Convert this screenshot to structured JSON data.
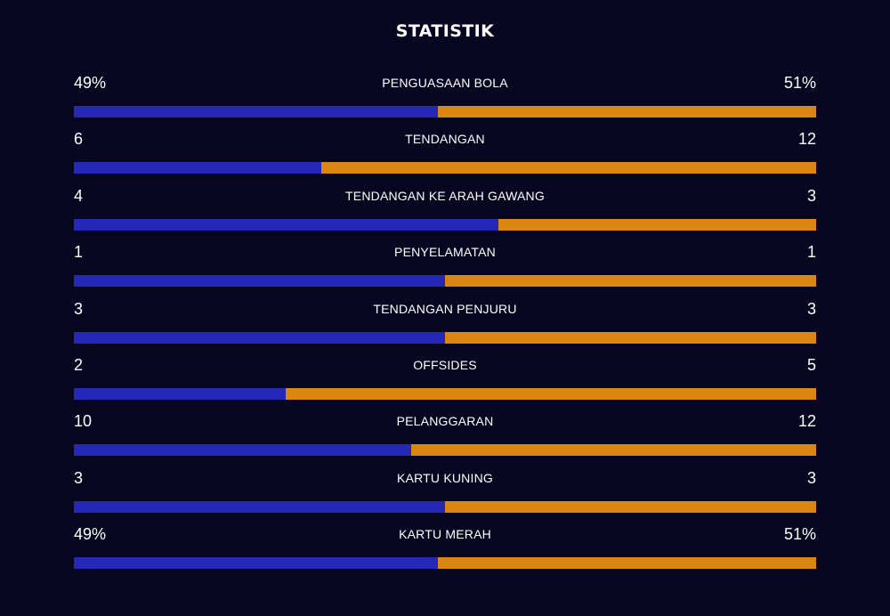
{
  "title": "STATISTIK",
  "colors": {
    "background": "#070620",
    "left_team_bar": "#2528b6",
    "right_team_bar": "#dc8612",
    "text": "#ffffff"
  },
  "stats": [
    {
      "label": "PENGUASAAN BOLA",
      "left": "49%",
      "right": "51%",
      "left_share": 0.49
    },
    {
      "label": "TENDANGAN",
      "left": "6",
      "right": "12",
      "left_share": 0.3333
    },
    {
      "label": "TENDANGAN KE ARAH GAWANG",
      "left": "4",
      "right": "3",
      "left_share": 0.5714
    },
    {
      "label": "PENYELAMATAN",
      "left": "1",
      "right": "1",
      "left_share": 0.5
    },
    {
      "label": "TENDANGAN PENJURU",
      "left": "3",
      "right": "3",
      "left_share": 0.5
    },
    {
      "label": "OFFSIDES",
      "left": "2",
      "right": "5",
      "left_share": 0.2857
    },
    {
      "label": "PELANGGARAN",
      "left": "10",
      "right": "12",
      "left_share": 0.4545
    },
    {
      "label": "KARTU KUNING",
      "left": "3",
      "right": "3",
      "left_share": 0.5
    },
    {
      "label": "KARTU MERAH",
      "left": "49%",
      "right": "51%",
      "left_share": 0.49
    }
  ]
}
